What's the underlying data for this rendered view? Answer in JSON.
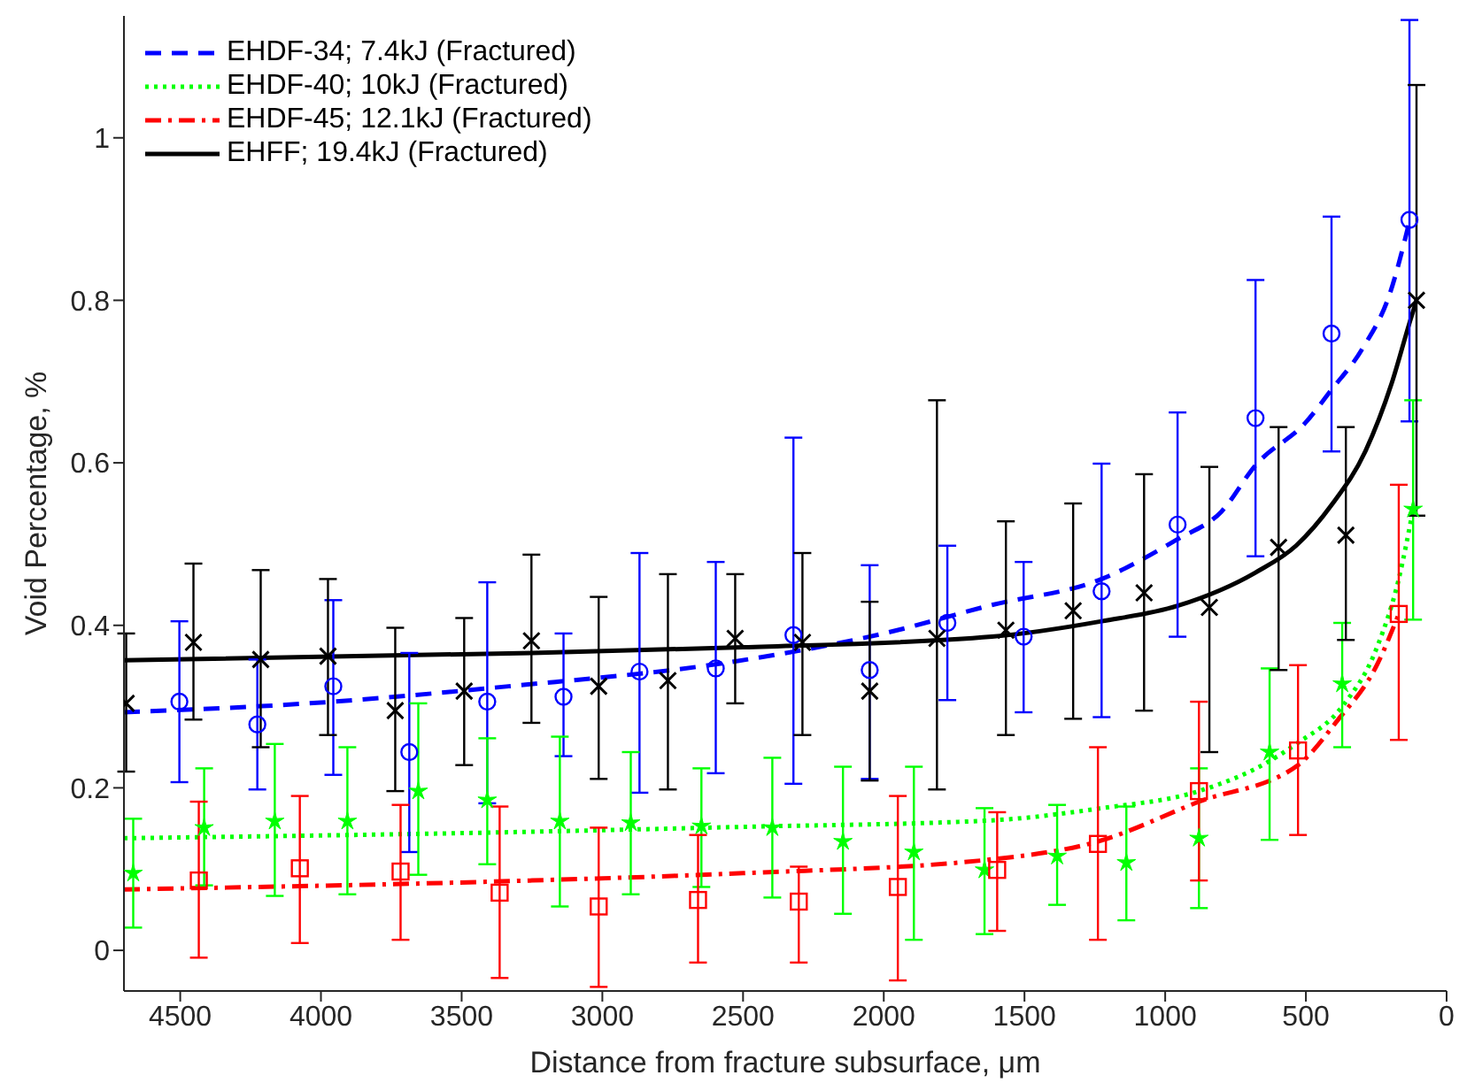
{
  "chart_data": {
    "type": "scatter",
    "xlabel": "Distance from fracture subsurface, μm",
    "ylabel": "Void Percentage, %",
    "xlim": [
      4700,
      0
    ],
    "xticks": [
      4500,
      4000,
      3500,
      3000,
      2500,
      2000,
      1500,
      1000,
      500,
      0
    ],
    "ylim": [
      -0.05,
      1.15
    ],
    "yticks": [
      0,
      0.2,
      0.4,
      0.6,
      0.8,
      1
    ],
    "grid": false,
    "legend": "top left",
    "series": [
      {
        "type": "line",
        "name": "EHDF-34; 7.4kJ (Fractured)",
        "color": "#0000ff",
        "line_style": "dashed",
        "marker": "none",
        "x": [
          4700,
          4000,
          3333,
          2541,
          2000,
          1616,
          1226,
          956,
          800,
          679,
          500,
          409,
          300,
          200,
          132
        ],
        "values": [
          0.293,
          0.305,
          0.325,
          0.355,
          0.39,
          0.425,
          0.457,
          0.506,
          0.54,
          0.597,
          0.65,
          0.69,
          0.74,
          0.81,
          0.897
        ]
      },
      {
        "type": "line",
        "name": "EHDF-40; 10kJ (Fractured)",
        "color": "#00ff00",
        "line_style": "dotted",
        "marker": "none",
        "x": [
          4700,
          3250,
          2500,
          1616,
          1226,
          880,
          629,
          535,
          371,
          245,
          170,
          119
        ],
        "values": [
          0.138,
          0.146,
          0.152,
          0.16,
          0.175,
          0.196,
          0.233,
          0.254,
          0.3,
          0.375,
          0.457,
          0.543
        ]
      },
      {
        "type": "line",
        "name": "EHDF-45; 12.1kJ (Fractured)",
        "color": "#ff0000",
        "line_style": "dashdot",
        "marker": "none",
        "x": [
          4700,
          3250,
          2500,
          1616,
          1239,
          880,
          528,
          390,
          245,
          170
        ],
        "values": [
          0.075,
          0.086,
          0.095,
          0.112,
          0.134,
          0.183,
          0.228,
          0.282,
          0.353,
          0.414
        ]
      },
      {
        "type": "line",
        "name": "EHFF; 19.4kJ (Fractured)",
        "color": "#000000",
        "line_style": "solid",
        "marker": "none",
        "x": [
          4700,
          3250,
          2500,
          1616,
          1226,
          956,
          679,
          535,
          409,
          289,
          195,
          132,
          107
        ],
        "values": [
          0.357,
          0.366,
          0.373,
          0.386,
          0.405,
          0.424,
          0.465,
          0.498,
          0.548,
          0.614,
          0.698,
          0.772,
          0.8
        ]
      },
      {
        "color": "#0000ff",
        "marker": "circle",
        "x": [
          4503,
          4226,
          3956,
          3686,
          3409,
          3138,
          2868,
          2597,
          2321,
          2050,
          1774,
          1503,
          1226,
          956,
          679,
          409,
          132
        ],
        "values": [
          0.306,
          0.278,
          0.325,
          0.244,
          0.306,
          0.312,
          0.343,
          0.347,
          0.388,
          0.345,
          0.403,
          0.386,
          0.442,
          0.524,
          0.655,
          0.759,
          0.899
        ],
        "errors": [
          [
            0.207,
            0.405
          ],
          [
            0.198,
            0.358
          ],
          [
            0.216,
            0.431
          ],
          [
            0.121,
            0.366
          ],
          [
            0.181,
            0.453
          ],
          [
            0.239,
            0.39
          ],
          [
            0.194,
            0.489
          ],
          [
            0.218,
            0.478
          ],
          [
            0.205,
            0.631
          ],
          [
            0.211,
            0.474
          ],
          [
            0.308,
            0.498
          ],
          [
            0.293,
            0.478
          ],
          [
            0.287,
            0.599
          ],
          [
            0.386,
            0.662
          ],
          [
            0.485,
            0.825
          ],
          [
            0.614,
            0.903
          ],
          [
            0.651,
            1.145
          ]
        ]
      },
      {
        "color": "#00ff00",
        "marker": "star",
        "x": [
          4667,
          4415,
          4164,
          3906,
          3654,
          3409,
          3151,
          2899,
          2648,
          2396,
          2145,
          1893,
          1642,
          1384,
          1138,
          880,
          629,
          371,
          119
        ],
        "values": [
          0.095,
          0.151,
          0.159,
          0.159,
          0.196,
          0.185,
          0.159,
          0.157,
          0.153,
          0.151,
          0.134,
          0.121,
          0.099,
          0.116,
          0.108,
          0.138,
          0.244,
          0.328,
          0.543
        ],
        "errors": [
          [
            0.028,
            0.162
          ],
          [
            0.08,
            0.224
          ],
          [
            0.067,
            0.254
          ],
          [
            0.069,
            0.25
          ],
          [
            0.093,
            0.304
          ],
          [
            0.106,
            0.261
          ],
          [
            0.054,
            0.263
          ],
          [
            0.069,
            0.244
          ],
          [
            0.078,
            0.224
          ],
          [
            0.065,
            0.237
          ],
          [
            0.045,
            0.226
          ],
          [
            0.013,
            0.226
          ],
          [
            0.02,
            0.175
          ],
          [
            0.056,
            0.179
          ],
          [
            0.037,
            0.177
          ],
          [
            0.052,
            0.224
          ],
          [
            0.136,
            0.347
          ],
          [
            0.25,
            0.403
          ],
          [
            0.407,
            0.677
          ]
        ]
      },
      {
        "color": "#ff0000",
        "marker": "square",
        "x": [
          4434,
          4075,
          3717,
          3365,
          3013,
          2660,
          2302,
          1950,
          1597,
          1239,
          880,
          528,
          170
        ],
        "values": [
          0.086,
          0.101,
          0.097,
          0.071,
          0.054,
          0.062,
          0.06,
          0.078,
          0.099,
          0.131,
          0.196,
          0.246,
          0.414
        ],
        "errors": [
          [
            -0.009,
            0.183
          ],
          [
            0.009,
            0.19
          ],
          [
            0.013,
            0.179
          ],
          [
            -0.034,
            0.177
          ],
          [
            -0.045,
            0.151
          ],
          [
            -0.015,
            0.142
          ],
          [
            -0.015,
            0.103
          ],
          [
            -0.037,
            0.19
          ],
          [
            0.024,
            0.17
          ],
          [
            0.013,
            0.25
          ],
          [
            0.086,
            0.306
          ],
          [
            0.142,
            0.351
          ],
          [
            0.259,
            0.573
          ]
        ]
      },
      {
        "color": "#000000",
        "marker": "cross",
        "x": [
          4692,
          4453,
          4214,
          3975,
          3736,
          3491,
          3252,
          3013,
          2767,
          2528,
          2289,
          2050,
          1811,
          1566,
          1327,
          1075,
          843,
          597,
          358,
          107
        ],
        "values": [
          0.304,
          0.379,
          0.358,
          0.362,
          0.295,
          0.319,
          0.381,
          0.325,
          0.332,
          0.384,
          0.379,
          0.319,
          0.384,
          0.394,
          0.418,
          0.44,
          0.422,
          0.496,
          0.511,
          0.8
        ],
        "errors": [
          [
            0.22,
            0.39
          ],
          [
            0.284,
            0.476
          ],
          [
            0.25,
            0.468
          ],
          [
            0.265,
            0.457
          ],
          [
            0.196,
            0.397
          ],
          [
            0.228,
            0.409
          ],
          [
            0.28,
            0.487
          ],
          [
            0.211,
            0.435
          ],
          [
            0.198,
            0.463
          ],
          [
            0.304,
            0.463
          ],
          [
            0.265,
            0.489
          ],
          [
            0.209,
            0.429
          ],
          [
            0.198,
            0.677
          ],
          [
            0.265,
            0.528
          ],
          [
            0.285,
            0.55
          ],
          [
            0.295,
            0.586
          ],
          [
            0.244,
            0.595
          ],
          [
            0.345,
            0.644
          ],
          [
            0.382,
            0.644
          ],
          [
            0.535,
            1.065
          ]
        ]
      }
    ]
  }
}
